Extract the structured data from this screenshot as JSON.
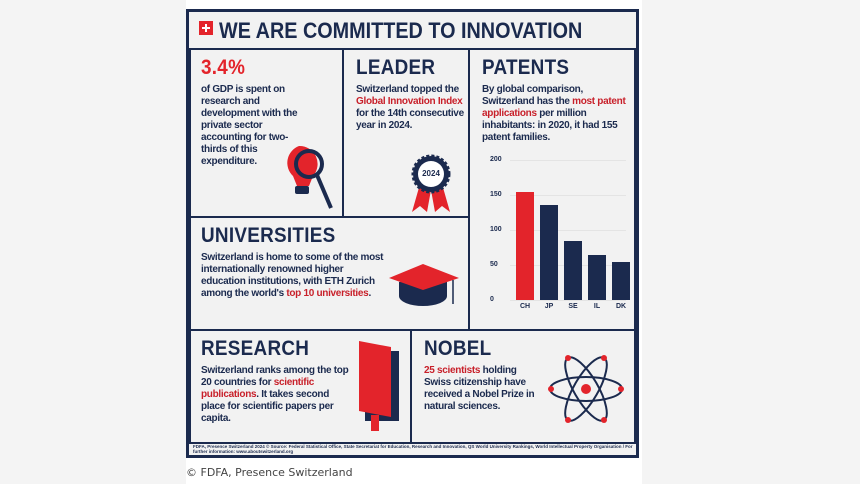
{
  "title": "WE ARE COMMITTED TO INNOVATION",
  "gdp": {
    "headline": "3.4%",
    "text": "of GDP is spent on research and development with the private sector accounting for two-thirds of this expenditure."
  },
  "leader": {
    "headline": "LEADER",
    "pre": "Switzerland topped the ",
    "highlight": "Global Innovation Index",
    "post": " for the 14th consecutive year in 2024.",
    "badge": "2024"
  },
  "patents": {
    "headline": "PATENTS",
    "pre": "By global comparison, Switzerland has the ",
    "highlight": "most patent applications",
    "post": " per million inhabitants: in 2020, it had 155 patent families."
  },
  "universities": {
    "headline": "UNIVERSITIES",
    "pre": "Switzerland is home to some of the most internationally renowned higher education institutions, with ETH Zurich among the world's ",
    "highlight": "top 10 universities",
    "post": "."
  },
  "research": {
    "headline": "RESEARCH",
    "pre": "Switzerland ranks among the top 20 countries for ",
    "highlight": "scientific publications",
    "post": ". It takes second place for scientific papers per capita."
  },
  "nobel": {
    "headline": "NOBEL",
    "highlight": "25 scientists",
    "post": " holding Swiss citizenship have received a Nobel Prize in natural sciences."
  },
  "footer": "FDFA, Presence Switzerland 2024 © Source: Federal Statistical Office, State Secretariat for Education, Research and Innovation, QS World University Rankings, World Intellectual Property Organisation / For further information: www.aboutswitzerland.org",
  "caption": "© FDFA, Presence Switzerland",
  "colors": {
    "navy": "#1b2a4e",
    "red": "#e3242b"
  },
  "chart_data": {
    "type": "bar",
    "title": "",
    "xlabel": "",
    "ylabel": "",
    "categories": [
      "CH",
      "JP",
      "SE",
      "IL",
      "DK"
    ],
    "values": [
      155,
      136,
      84,
      65,
      55
    ],
    "highlight": "CH",
    "ylim": [
      0,
      200
    ],
    "yticks": [
      0,
      50,
      100,
      150,
      200
    ],
    "grid": true
  }
}
